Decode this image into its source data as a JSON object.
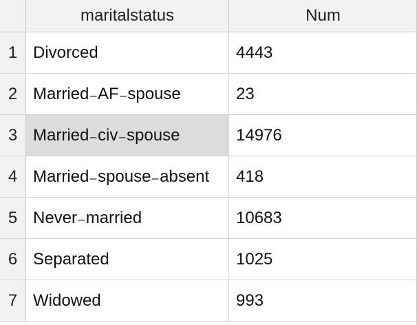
{
  "table": {
    "columns": [
      "maritalstatus",
      "Num"
    ],
    "rows": [
      {
        "index": "1",
        "maritalstatus": "Divorced",
        "num": "4443"
      },
      {
        "index": "2",
        "maritalstatus": "Married₋AF₋spouse",
        "num": "23"
      },
      {
        "index": "3",
        "maritalstatus": "Married₋civ₋spouse",
        "num": "14976"
      },
      {
        "index": "4",
        "maritalstatus": "Married₋spouse₋absent",
        "num": "418"
      },
      {
        "index": "5",
        "maritalstatus": "Never₋married",
        "num": "10683"
      },
      {
        "index": "6",
        "maritalstatus": "Separated",
        "num": "1025"
      },
      {
        "index": "7",
        "maritalstatus": "Widowed",
        "num": "993"
      }
    ],
    "selected_row": 3
  }
}
